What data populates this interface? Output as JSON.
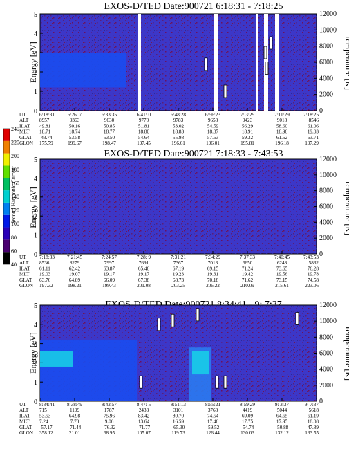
{
  "colors": {
    "background": "#3c37c8",
    "noise": "#5a1e78",
    "band_blue": "#1a4cf0",
    "band_cyan": "#18d2e8",
    "gap_white": "#ffffff"
  },
  "colorbar": {
    "label": "Second Harmonic Current",
    "ticks": [
      "40",
      "60",
      "80",
      "100",
      "120",
      "140",
      "160",
      "180",
      "200",
      "220",
      "240"
    ],
    "colors": [
      "#000000",
      "#4a0070",
      "#2a00b8",
      "#0018e8",
      "#0080f0",
      "#00d0d0",
      "#00c060",
      "#60e000",
      "#f0f000",
      "#f08000",
      "#e00000"
    ]
  },
  "chart_data": [
    {
      "type": "heatmap",
      "title": "EXOS-D/TED   Date:900721   6:18:31 - 7:18:25",
      "ylabel": "Energy [eV]",
      "ylabel_right": "Temperature [K]",
      "ylim": [
        0,
        5
      ],
      "yticks": [
        "0",
        "1",
        "2",
        "3",
        "4",
        "5"
      ],
      "ylim_right": [
        0,
        12000
      ],
      "yticks_right": [
        "0",
        "2000",
        "4000",
        "6000",
        "8000",
        "10000",
        "12000"
      ],
      "row_labels": [
        "UT",
        "ALT",
        "ILAT",
        "MLT",
        "GLAT",
        "GLON"
      ],
      "columns": [
        [
          "6:18:31",
          "8957",
          "49.81",
          "18.71",
          "-43.74",
          "175.79"
        ],
        [
          "6:26: 7",
          "9363",
          "50.16",
          "18.74",
          "53.58",
          "199.67"
        ],
        [
          "6:33:35",
          "9630",
          "50.85",
          "18.77",
          "53.50",
          "198.47"
        ],
        [
          "6:41: 0",
          "9770",
          "51.81",
          "18.80",
          "54.64",
          "197.45"
        ],
        [
          "6:48:28",
          "9783",
          "53.02",
          "18.83",
          "55.98",
          "196.61"
        ],
        [
          "6:56:23",
          "9658",
          "54.59",
          "18.87",
          "57.63",
          "196.01"
        ],
        [
          "7: 3:29",
          "9423",
          "56.29",
          "18.91",
          "59.32",
          "195.81"
        ],
        [
          "7:11:29",
          "9018",
          "58.60",
          "18.96",
          "61.52",
          "196.18"
        ],
        [
          "7:18:25",
          "8546",
          "61.06",
          "19.03",
          "63.71",
          "197.29"
        ]
      ],
      "features": {
        "band": {
          "from": 0.0,
          "to": 0.31,
          "emin": 1.2,
          "emax": 3.0
        },
        "gaps": [
          [
            0.355,
            0.365
          ],
          [
            0.63,
            0.645
          ],
          [
            0.78,
            0.79
          ],
          [
            0.81,
            0.825
          ],
          [
            0.85,
            0.865
          ]
        ],
        "blobs": [
          [
            0.6,
            2.4
          ],
          [
            0.67,
            1.0
          ],
          [
            0.815,
            3.0
          ],
          [
            0.835,
            3.5
          ],
          [
            0.82,
            2.2
          ]
        ]
      }
    },
    {
      "type": "heatmap",
      "title": "EXOS-D/TED   Date:900721   7:18:33 - 7:43:53",
      "ylabel": "Energy [eV]",
      "ylabel_right": "Temperature [K]",
      "ylim": [
        0,
        5
      ],
      "yticks": [
        "0",
        "1",
        "2",
        "3",
        "4",
        "5"
      ],
      "ylim_right": [
        0,
        12000
      ],
      "yticks_right": [
        "0",
        "2000",
        "4000",
        "6000",
        "8000",
        "10000",
        "12000"
      ],
      "row_labels": [
        "UT",
        "ALT",
        "ILAT",
        "MLT",
        "GLAT",
        "GLON"
      ],
      "columns": [
        [
          "7:18:33",
          "8536",
          "61.11",
          "19.03",
          "63.76",
          "197.32"
        ],
        [
          "7:21:45",
          "8279",
          "62.42",
          "19.07",
          "64.89",
          "198.21"
        ],
        [
          "7:24:57",
          "7997",
          "63.87",
          "19.17",
          "66.09",
          "199.43"
        ],
        [
          "7:28: 9",
          "7691",
          "65.46",
          "19.17",
          "67.38",
          "201.08"
        ],
        [
          "7:31:21",
          "7367",
          "67.19",
          "19.23",
          "68.73",
          "203.25"
        ],
        [
          "7:34:29",
          "7013",
          "69.15",
          "19.31",
          "70.18",
          "206.22"
        ],
        [
          "7:37:33",
          "6650",
          "71.24",
          "19.42",
          "71.62",
          "210.09"
        ],
        [
          "7:40:45",
          "6248",
          "73.65",
          "19.56",
          "73.15",
          "215.61"
        ],
        [
          "7:43:53",
          "5832",
          "76.28",
          "19.78",
          "74.58",
          "223.06"
        ]
      ],
      "features": {
        "band": null,
        "gaps": [],
        "blobs": []
      }
    },
    {
      "type": "heatmap",
      "title": "EXOS-D/TED   Date:900721   8:34:41 - 9: 7:37",
      "ylabel": "Energy [eV]",
      "ylabel_right": "Temperature [K]",
      "ylim": [
        0,
        5
      ],
      "yticks": [
        "0",
        "1",
        "2",
        "3",
        "4",
        "5"
      ],
      "ylim_right": [
        0,
        12000
      ],
      "yticks_right": [
        "0",
        "2000",
        "4000",
        "6000",
        "8000",
        "10000",
        "12000"
      ],
      "row_labels": [
        "UT",
        "ALT",
        "ILAT",
        "MLT",
        "GLAT",
        "GLON"
      ],
      "columns": [
        [
          "8:34:41",
          "715",
          "53.53",
          "7.24",
          "-57.17",
          "358.12"
        ],
        [
          "8:38:49",
          "1199",
          "64.98",
          "7.73",
          "-71.44",
          "21.01"
        ],
        [
          "8:42:57",
          "1787",
          "75.96",
          "9.06",
          "-76.32",
          "68.95"
        ],
        [
          "8:47: 5",
          "2433",
          "83.42",
          "13.64",
          "-71.77",
          "105.07"
        ],
        [
          "8:51:13",
          "3101",
          "80.70",
          "16.59",
          "-65.30",
          "119.73"
        ],
        [
          "8:55:21",
          "3768",
          "74.54",
          "17.46",
          "-59.52",
          "126.44"
        ],
        [
          "8:59:29",
          "4419",
          "69.09",
          "17.75",
          "-54.74",
          "130.03"
        ],
        [
          "9: 3:37",
          "5044",
          "64.65",
          "17.95",
          "-50.88",
          "132.12"
        ],
        [
          "9: 7:37",
          "5618",
          "61.19",
          "18.08",
          "-47.89",
          "133.55"
        ]
      ],
      "features": {
        "band": {
          "from": 0.0,
          "to": 0.35,
          "emin": 0.0,
          "emax": 3.2
        },
        "bright": {
          "from": 0.54,
          "to": 0.62,
          "emin": 0.0,
          "emax": 2.8
        },
        "gaps": [],
        "blobs": [
          [
            0.365,
            1.0
          ],
          [
            0.43,
            4.0
          ],
          [
            0.48,
            4.2
          ],
          [
            0.57,
            4.5
          ],
          [
            0.64,
            1.0
          ],
          [
            0.67,
            1.0
          ],
          [
            0.93,
            4.3
          ]
        ]
      }
    }
  ]
}
